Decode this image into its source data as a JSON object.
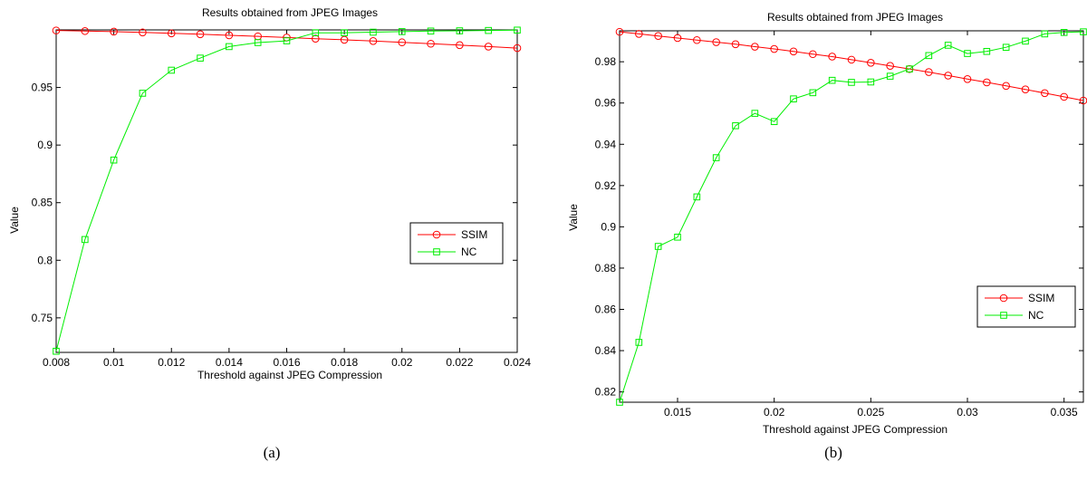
{
  "chart_data": [
    {
      "type": "line",
      "title": "Results obtained from JPEG Images",
      "xlabel": "Threshold against JPEG Compression",
      "ylabel": "Value",
      "caption": "(a)",
      "xlim": [
        0.008,
        0.024
      ],
      "ylim": [
        0.72,
        1.0
      ],
      "xticks": [
        0.008,
        0.01,
        0.012,
        0.014,
        0.016,
        0.018,
        0.02,
        0.022,
        0.024
      ],
      "xtick_labels": [
        "0.008",
        "0.01",
        "0.012",
        "0.014",
        "0.016",
        "0.018",
        "0.02",
        "0.022",
        "0.024"
      ],
      "yticks": [
        0.75,
        0.8,
        0.85,
        0.9,
        0.95
      ],
      "ytick_labels": [
        "0.75",
        "0.8",
        "0.85",
        "0.9",
        "0.95"
      ],
      "grid": false,
      "legend_position": "center-right",
      "x": [
        0.008,
        0.009,
        0.01,
        0.011,
        0.012,
        0.013,
        0.014,
        0.015,
        0.016,
        0.017,
        0.018,
        0.019,
        0.02,
        0.021,
        0.022,
        0.023,
        0.024
      ],
      "series": [
        {
          "name": "SSIM",
          "color": "#ff0000",
          "marker": "circle",
          "values": [
            0.9995,
            0.999,
            0.9985,
            0.9978,
            0.997,
            0.9962,
            0.9953,
            0.9944,
            0.9934,
            0.9924,
            0.9914,
            0.9903,
            0.9892,
            0.988,
            0.9868,
            0.9855,
            0.9842
          ]
        },
        {
          "name": "NC",
          "color": "#00ee00",
          "marker": "square",
          "values": [
            0.721,
            0.818,
            0.887,
            0.945,
            0.965,
            0.9755,
            0.9855,
            0.989,
            0.9905,
            0.9975,
            0.9975,
            0.998,
            0.9985,
            0.999,
            0.9992,
            0.9995,
            0.9998
          ]
        }
      ]
    },
    {
      "type": "line",
      "title": "Results obtained from JPEG Images",
      "xlabel": "Threshold against JPEG Compression",
      "ylabel": "Value",
      "caption": "(b)",
      "xlim": [
        0.012,
        0.036
      ],
      "ylim": [
        0.815,
        0.995
      ],
      "xticks": [
        0.015,
        0.02,
        0.025,
        0.03,
        0.035
      ],
      "xtick_labels": [
        "0.015",
        "0.02",
        "0.025",
        "0.03",
        "0.035"
      ],
      "yticks": [
        0.82,
        0.84,
        0.86,
        0.88,
        0.9,
        0.92,
        0.94,
        0.96,
        0.98
      ],
      "ytick_labels": [
        "0.82",
        "0.84",
        "0.86",
        "0.88",
        "0.9",
        "0.92",
        "0.94",
        "0.96",
        "0.98"
      ],
      "grid": false,
      "legend_position": "lower-right",
      "x": [
        0.012,
        0.013,
        0.014,
        0.015,
        0.016,
        0.017,
        0.018,
        0.019,
        0.02,
        0.021,
        0.022,
        0.023,
        0.024,
        0.025,
        0.026,
        0.027,
        0.028,
        0.029,
        0.03,
        0.031,
        0.032,
        0.033,
        0.034,
        0.035,
        0.036
      ],
      "series": [
        {
          "name": "SSIM",
          "color": "#ff0000",
          "marker": "circle",
          "values": [
            0.9945,
            0.9935,
            0.9925,
            0.9915,
            0.9905,
            0.9895,
            0.9885,
            0.9873,
            0.9862,
            0.985,
            0.9837,
            0.9825,
            0.981,
            0.9795,
            0.978,
            0.9765,
            0.975,
            0.9733,
            0.9716,
            0.97,
            0.9683,
            0.9666,
            0.9648,
            0.963,
            0.9612
          ]
        },
        {
          "name": "NC",
          "color": "#00ee00",
          "marker": "square",
          "values": [
            0.815,
            0.844,
            0.8905,
            0.895,
            0.9145,
            0.9335,
            0.949,
            0.955,
            0.951,
            0.962,
            0.965,
            0.971,
            0.97,
            0.9702,
            0.973,
            0.9765,
            0.983,
            0.988,
            0.984,
            0.985,
            0.987,
            0.99,
            0.9935,
            0.9942,
            0.9945
          ]
        }
      ]
    }
  ]
}
